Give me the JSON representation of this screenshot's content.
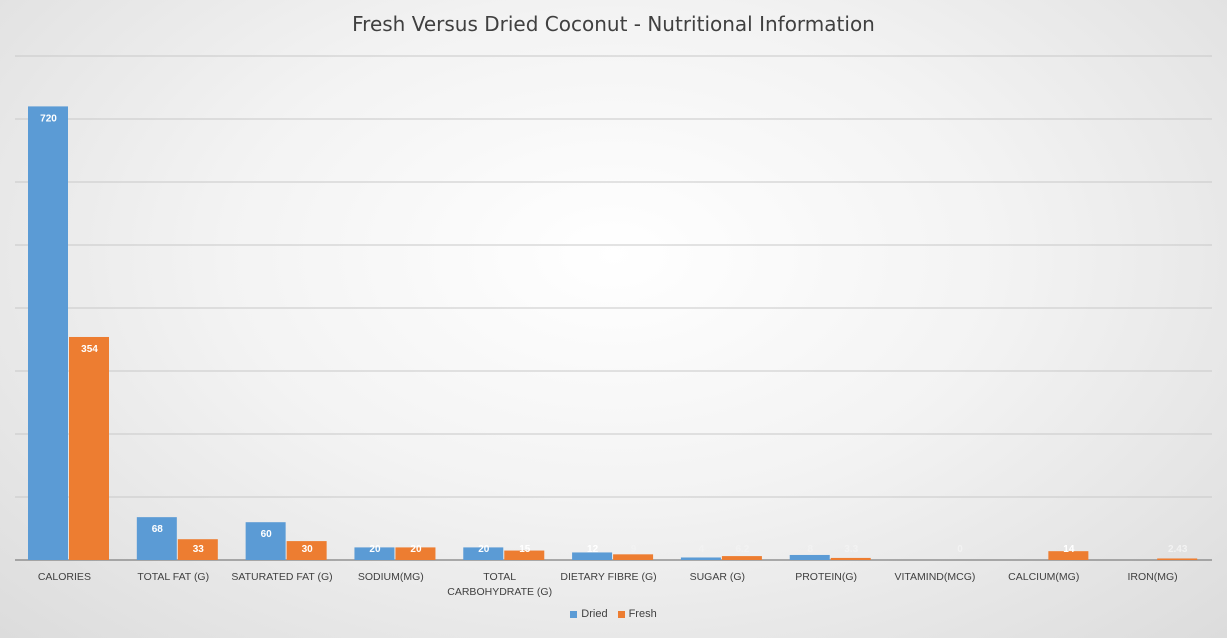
{
  "chart_data": {
    "type": "bar",
    "title": "Fresh Versus Dried Coconut - Nutritional Information",
    "xlabel": "",
    "ylabel": "",
    "ylim": [
      0,
      800
    ],
    "grid": true,
    "legend_position": "bottom",
    "categories": [
      "CALORIES",
      "TOTAL FAT (G)",
      "SATURATED FAT (G)",
      "SODIUM(MG)",
      "TOTAL CARBOHYDRATE (G)",
      "DIETARY FIBRE (G)",
      "SUGAR (G)",
      "PROTEIN(G)",
      "VITAMIND(MCG)",
      "CALCIUM(MG)",
      "IRON(MG)"
    ],
    "series": [
      {
        "name": "Dried",
        "color": "#5b9bd5",
        "values": [
          720,
          68,
          60,
          20,
          20,
          12,
          4,
          8,
          null,
          null,
          null
        ],
        "labels": [
          "720",
          "68",
          "60",
          "20",
          "20",
          "12",
          "4",
          "8",
          "",
          "",
          ""
        ]
      },
      {
        "name": "Fresh",
        "color": "#ed7d31",
        "values": [
          354,
          33,
          30,
          20,
          15,
          9,
          6.2,
          3.3,
          0,
          14,
          2.43
        ],
        "labels": [
          "354",
          "33",
          "30",
          "20",
          "15",
          "9",
          "6.2",
          "3.3",
          "0",
          "14",
          "2.43"
        ]
      }
    ]
  },
  "legend": {
    "items": [
      {
        "label": "Dried",
        "color": "#5b9bd5"
      },
      {
        "label": "Fresh",
        "color": "#ed7d31"
      }
    ]
  }
}
